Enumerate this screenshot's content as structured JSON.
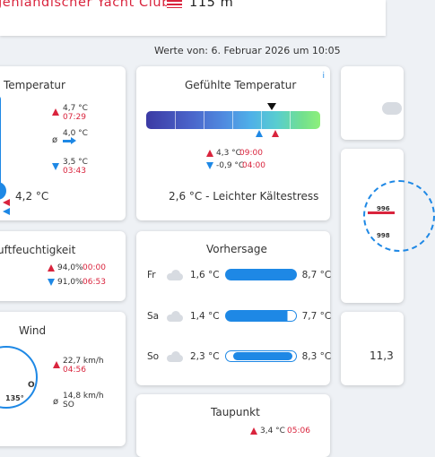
{
  "header": {
    "title": "genländischer Yacht Club",
    "height_value": "115 m"
  },
  "werte_label": "Werte von: 6. Februar 2026 um 10:05",
  "temperatur": {
    "title": "Temperatur",
    "max_value": "4,7 °C",
    "max_time": "07:29",
    "avg_label": "ø",
    "avg_value": "4,0 °C",
    "min_value": "3,5 °C",
    "min_time": "03:43",
    "current": "4,2 °C"
  },
  "gefuehlt": {
    "title": "Gefühlte Temperatur",
    "info_icon": "i",
    "max_value": "4,3 °C",
    "max_time": "09:00",
    "min_value": "-0,9 °C",
    "min_time": "04:00",
    "summary": "2,6 °C - Leichter Kältestress"
  },
  "luftfeuchtigkeit": {
    "title": "uftfeuchtigkeit",
    "max_value": "94,0%",
    "max_time": "00:00",
    "min_value": "91,0%",
    "min_time": "06:53"
  },
  "vorhersage": {
    "title": "Vorhersage",
    "days": [
      {
        "day": "Fr",
        "min": "1,6 °C",
        "max": "8,7 °C",
        "icon": "cloud-icon"
      },
      {
        "day": "Sa",
        "min": "1,4 °C",
        "max": "7,7 °C",
        "icon": "cloud-moon-icon"
      },
      {
        "day": "So",
        "min": "2,3 °C",
        "max": "8,3 °C",
        "icon": "cloud-icon"
      }
    ]
  },
  "wind": {
    "title": "Wind",
    "gust_value": "22,7 km/h",
    "gust_time": "04:56",
    "avg_label": "ø",
    "avg_value": "14,8 km/h",
    "avg_dir": "SO",
    "compass_label": "135°",
    "compass_letter": "O"
  },
  "taupunkt": {
    "title": "Taupunkt",
    "max_value": "3,4 °C",
    "max_time": "05:06"
  },
  "right_partial": {
    "compass_text_1": "996",
    "compass_text_2": "998",
    "value": "11,3"
  },
  "colors": {
    "accent_red": "#d9243d",
    "accent_blue": "#1e88e5"
  }
}
